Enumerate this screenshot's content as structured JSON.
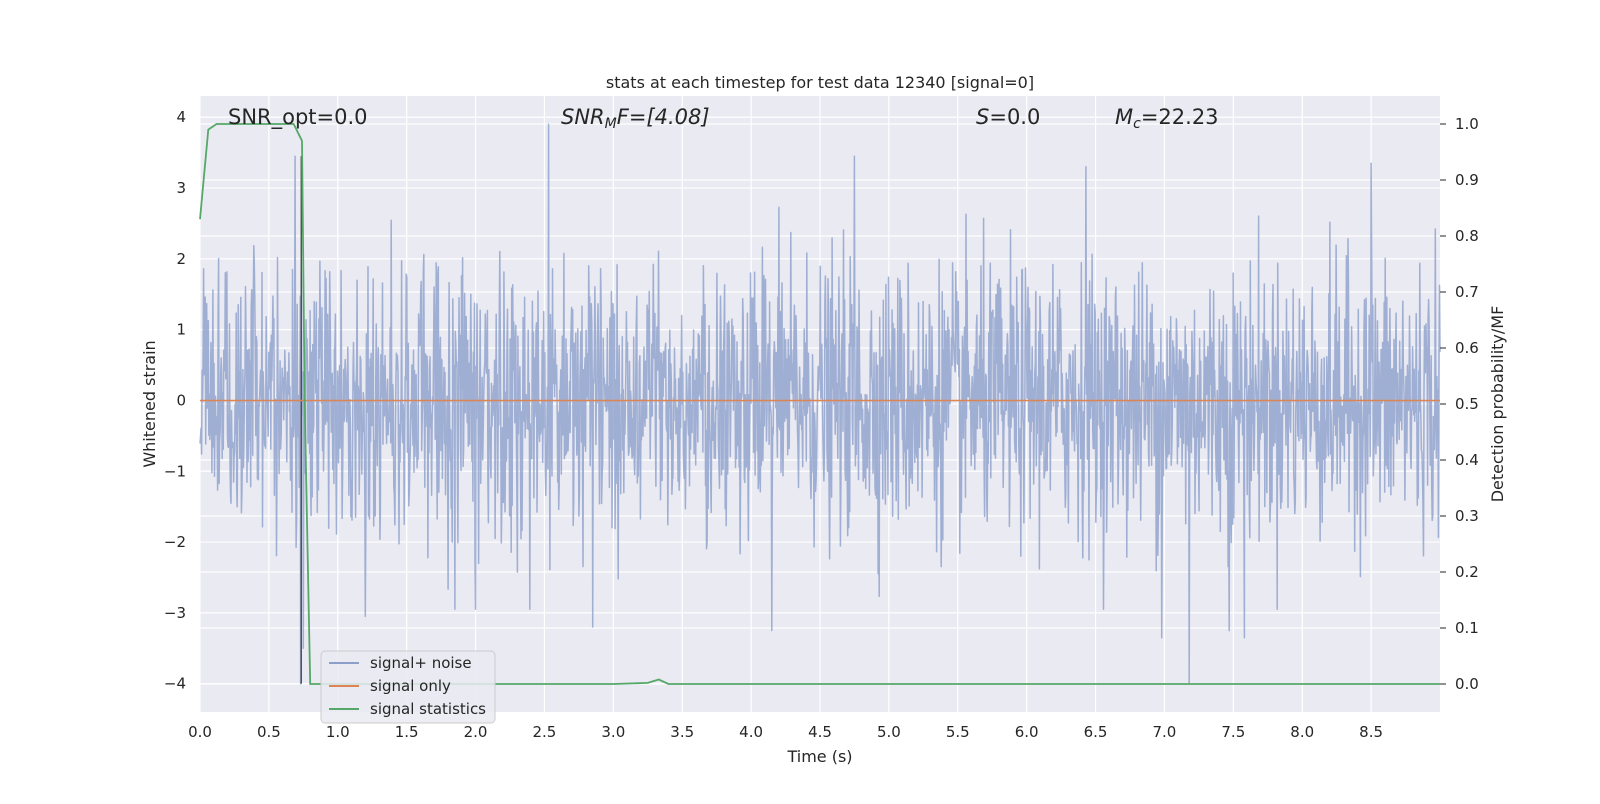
{
  "chart_data": {
    "type": "line",
    "title": "stats at each timestep for test data 12340 [signal=0]",
    "xlabel": "Time (s)",
    "ylabel": "Whitened strain",
    "y2label": "Detection probability/MF",
    "xlim": [
      0.0,
      9.0
    ],
    "ylim": [
      -4.4,
      4.3
    ],
    "y2lim": [
      -0.05,
      1.05
    ],
    "xticks": [
      "0.0",
      "0.5",
      "1.0",
      "1.5",
      "2.0",
      "2.5",
      "3.0",
      "3.5",
      "4.0",
      "4.5",
      "5.0",
      "5.5",
      "6.0",
      "6.5",
      "7.0",
      "7.5",
      "8.0",
      "8.5"
    ],
    "yticks": [
      "−4",
      "−3",
      "−2",
      "−1",
      "0",
      "1",
      "2",
      "3",
      "4"
    ],
    "y2ticks": [
      "0.0",
      "0.1",
      "0.2",
      "0.3",
      "0.4",
      "0.5",
      "0.6",
      "0.7",
      "0.8",
      "0.9",
      "1.0"
    ],
    "grid": true,
    "legend_position": "lower-left",
    "annotations": {
      "snr_opt": "SNR_opt=0.0",
      "snr_mf_base": "SNR",
      "snr_mf_sub": "M",
      "snr_mf_rest": "F=[4.08]",
      "s_var": "S",
      "s_rest": "=0.0",
      "mc_var": "M",
      "mc_sub": "c",
      "mc_rest": "=22.23"
    },
    "series": [
      {
        "name": "signal+ noise",
        "axis": "left",
        "color": "#8c9fcb",
        "description_values": {
          "t_start": 0.0,
          "t_end": 9.0,
          "envelope_typical": [
            -1.6,
            1.6
          ],
          "peaks": [
            {
              "x": 0.69,
              "y": 3.45
            },
            {
              "x": 0.75,
              "y": -3.5
            },
            {
              "x": 0.73,
              "y": -4.0
            },
            {
              "x": 2.53,
              "y": 3.9
            },
            {
              "x": 4.75,
              "y": 3.45
            },
            {
              "x": 6.43,
              "y": 3.3
            },
            {
              "x": 7.18,
              "y": -4.0
            },
            {
              "x": 7.47,
              "y": -3.25
            },
            {
              "x": 8.5,
              "y": 3.35
            },
            {
              "x": 2.85,
              "y": -3.2
            },
            {
              "x": 4.15,
              "y": -3.25
            },
            {
              "x": 1.2,
              "y": -3.05
            },
            {
              "x": 1.85,
              "y": -2.95
            },
            {
              "x": 6.98,
              "y": -3.35
            },
            {
              "x": 7.58,
              "y": -3.35
            }
          ]
        }
      },
      {
        "name": "signal only",
        "axis": "left",
        "color": "#dd8452",
        "x": [
          0.0,
          9.0
        ],
        "y": [
          0.0,
          0.0
        ]
      },
      {
        "name": "signal statistics",
        "axis": "right",
        "color": "#55a868",
        "x": [
          0.0,
          0.06,
          0.12,
          0.2,
          0.35,
          0.5,
          0.6,
          0.68,
          0.72,
          0.74,
          0.76,
          0.8,
          1.0,
          2.0,
          3.0,
          3.25,
          3.33,
          3.4,
          4.0,
          5.0,
          6.0,
          7.0,
          8.0,
          9.0
        ],
        "y": [
          0.83,
          0.99,
          1.0,
          1.0,
          1.0,
          1.0,
          1.0,
          1.0,
          0.98,
          0.97,
          0.5,
          0.0,
          0.0,
          0.0,
          0.0,
          0.002,
          0.008,
          0.0,
          0.0,
          0.0,
          0.0,
          0.0,
          0.0,
          0.0
        ]
      }
    ]
  }
}
